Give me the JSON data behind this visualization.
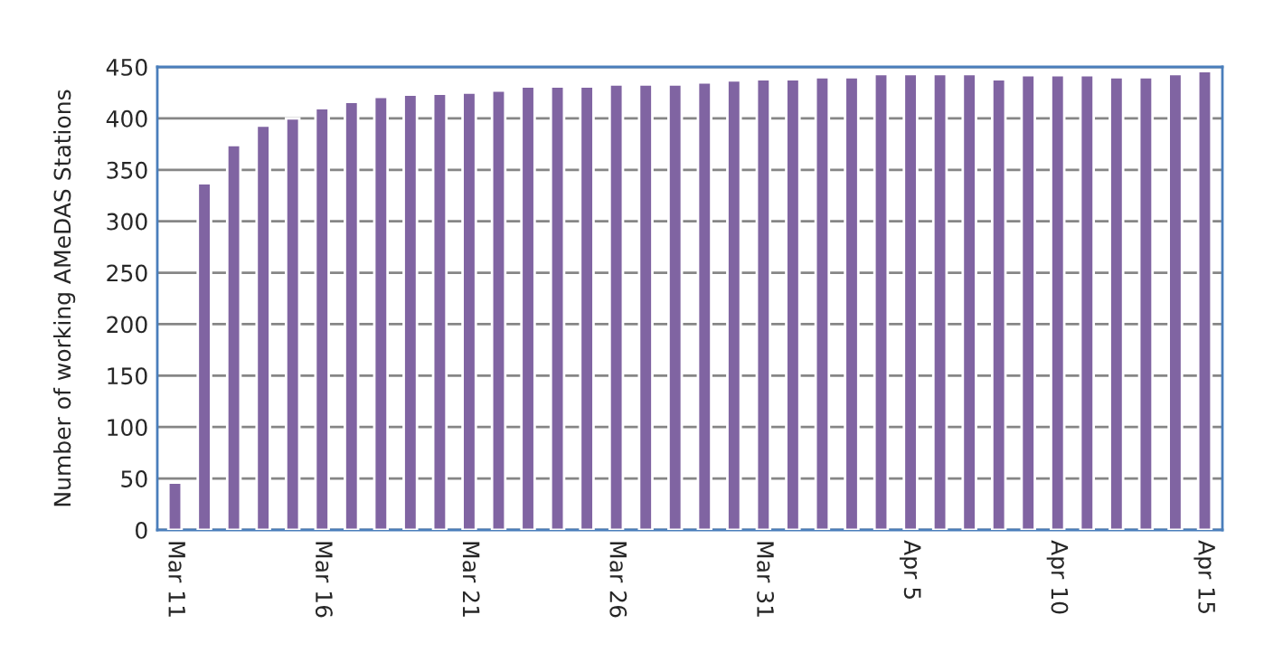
{
  "chart_data": {
    "type": "bar",
    "ylabel": "Number of working AMeDAS Stations",
    "categories": [
      "Mar 11",
      null,
      null,
      null,
      null,
      "Mar 16",
      null,
      null,
      null,
      null,
      "Mar 21",
      null,
      null,
      null,
      null,
      "Mar 26",
      null,
      null,
      null,
      null,
      "Mar 31",
      null,
      null,
      null,
      null,
      "Apr 5",
      null,
      null,
      null,
      null,
      "Apr 10",
      null,
      null,
      null,
      null,
      "Apr 15"
    ],
    "values": [
      46,
      337,
      374,
      393,
      400,
      410,
      416,
      421,
      423,
      424,
      425,
      427,
      431,
      431,
      431,
      433,
      433,
      433,
      435,
      437,
      438,
      438,
      440,
      440,
      443,
      443,
      443,
      443,
      438,
      442,
      442,
      442,
      440,
      440,
      443,
      446
    ],
    "color": "#8064a2",
    "ylim": [
      0,
      450
    ],
    "yticks": [
      0,
      50,
      100,
      150,
      200,
      250,
      300,
      350,
      400,
      450
    ],
    "grid": "y"
  }
}
